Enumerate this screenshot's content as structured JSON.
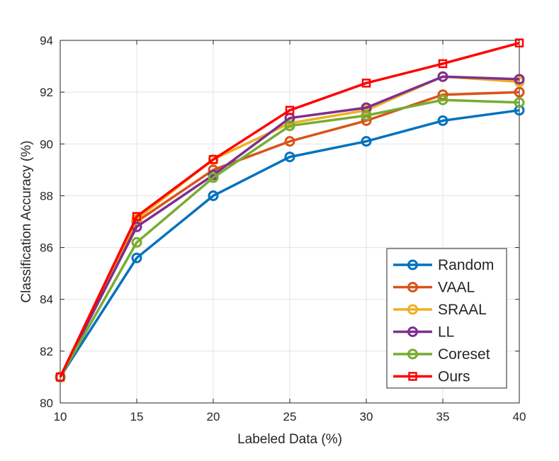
{
  "chart_data": {
    "type": "line",
    "title": "",
    "xlabel": "Labeled Data (%)",
    "ylabel": "Classification Accuracy (%)",
    "xlim": [
      10,
      40
    ],
    "ylim": [
      80,
      94
    ],
    "x_ticks": [
      "10",
      "15",
      "20",
      "25",
      "30",
      "35",
      "40"
    ],
    "y_ticks": [
      "80",
      "82",
      "84",
      "86",
      "88",
      "90",
      "92",
      "94"
    ],
    "grid": true,
    "legend_position": "bottom-right",
    "x": [
      10,
      15,
      20,
      25,
      30,
      35,
      40
    ],
    "series": [
      {
        "name": "Random",
        "color": "#0072BD",
        "marker": "circle",
        "values": [
          81.0,
          85.6,
          88.0,
          89.5,
          90.1,
          90.9,
          91.3
        ]
      },
      {
        "name": "VAAL",
        "color": "#D95319",
        "marker": "circle",
        "values": [
          81.0,
          87.0,
          89.0,
          90.1,
          90.9,
          91.9,
          92.0
        ]
      },
      {
        "name": "SRAAL",
        "color": "#EDB120",
        "marker": "circle",
        "values": [
          81.0,
          87.1,
          89.4,
          90.8,
          91.3,
          92.6,
          92.4
        ]
      },
      {
        "name": "LL",
        "color": "#7E2F8E",
        "marker": "circle",
        "values": [
          81.0,
          86.8,
          88.8,
          91.0,
          91.4,
          92.6,
          92.5
        ]
      },
      {
        "name": "Coreset",
        "color": "#77AC30",
        "marker": "circle",
        "values": [
          81.0,
          86.2,
          88.7,
          90.7,
          91.1,
          91.7,
          91.6
        ]
      },
      {
        "name": "Ours",
        "color": "#FF0000",
        "marker": "square",
        "values": [
          81.0,
          87.2,
          89.4,
          91.3,
          92.35,
          93.1,
          93.9
        ]
      }
    ]
  }
}
